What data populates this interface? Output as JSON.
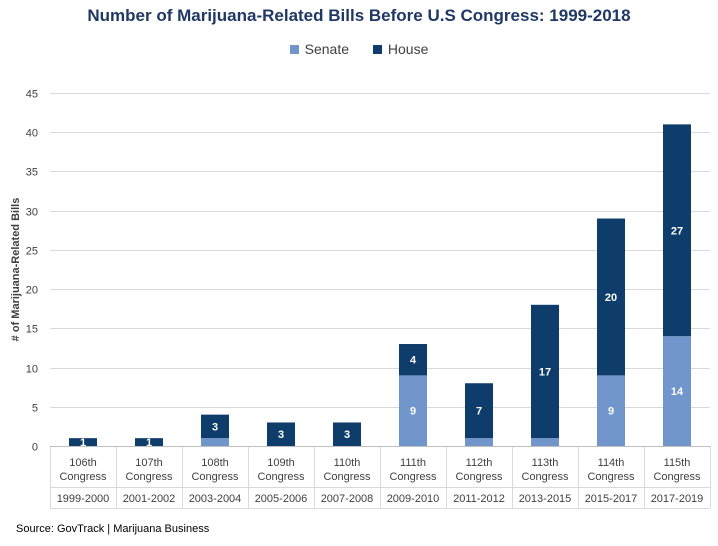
{
  "title": "Number of Marijuana-Related Bills Before U.S Congress: 1999-2018",
  "source": "Source: GovTrack | Marijuana Business",
  "colors": {
    "senate": "#7096cc",
    "house": "#0e3d6b"
  },
  "chart_data": {
    "type": "bar",
    "stacked": true,
    "title": "Number of Marijuana-Related Bills Before U.S Congress: 1999-2018",
    "ylabel": "# of Marijuana-Related Bills",
    "xlabel": "",
    "ylim": [
      0,
      45
    ],
    "yticks": [
      0,
      5,
      10,
      15,
      20,
      25,
      30,
      35,
      40,
      45
    ],
    "grid": true,
    "legend_position": "top",
    "categories": [
      [
        "106th",
        "Congress"
      ],
      [
        "107th",
        "Congress"
      ],
      [
        "108th",
        "Congress"
      ],
      [
        "109th",
        "Congress"
      ],
      [
        "110th",
        "Congress"
      ],
      [
        "111th",
        "Congress"
      ],
      [
        "112th",
        "Congress"
      ],
      [
        "113th",
        "Congress"
      ],
      [
        "114th",
        "Congress"
      ],
      [
        "115th",
        "Congress"
      ]
    ],
    "periods": [
      "1999-2000",
      "2001-2002",
      "2003-2004",
      "2005-2006",
      "2007-2008",
      "2009-2010",
      "2011-2012",
      "2013-2015",
      "2015-2017",
      "2017-2019"
    ],
    "series": [
      {
        "name": "Senate",
        "values": [
          0,
          0,
          1,
          0,
          0,
          9,
          1,
          1,
          9,
          14
        ],
        "labels": [
          "",
          "",
          "",
          "",
          "",
          "9",
          "",
          "",
          "9",
          "14"
        ]
      },
      {
        "name": "House",
        "values": [
          1,
          1,
          3,
          3,
          3,
          4,
          7,
          17,
          20,
          27
        ],
        "labels": [
          "1",
          "1",
          "3",
          "3",
          "3",
          "4",
          "7",
          "17",
          "20",
          "27"
        ]
      }
    ]
  }
}
